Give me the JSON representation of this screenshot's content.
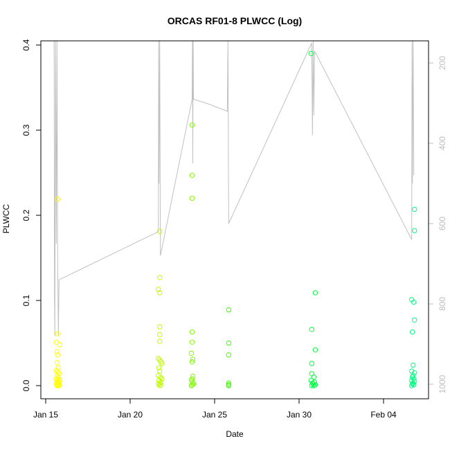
{
  "chart_data": {
    "type": "scatter",
    "title": "ORCAS RF01-8 PLWCC (Log)",
    "xlabel": "Date",
    "ylabel": "PLWCC",
    "xlim": [
      "2016-01-15T00:00",
      "2016-02-06T12:00"
    ],
    "ylim": [
      0,
      0.4
    ],
    "x_ticks": [
      {
        "date": "2016-01-15",
        "label": "Jan 15"
      },
      {
        "date": "2016-01-20",
        "label": "Jan 20"
      },
      {
        "date": "2016-01-25",
        "label": "Jan 25"
      },
      {
        "date": "2016-01-30",
        "label": "Jan 30"
      },
      {
        "date": "2016-02-04",
        "label": "Feb 04"
      }
    ],
    "y_ticks": [
      0.0,
      0.1,
      0.2,
      0.3,
      0.4
    ],
    "y_tick_labels": [
      "0.0",
      "0.1",
      "0.2",
      "0.3",
      "0.4"
    ],
    "right_axis": {
      "ticks": [
        200,
        400,
        600,
        800,
        1000
      ],
      "reversed": true,
      "range": [
        100,
        1000
      ],
      "color": "#bdbdbd"
    },
    "grid": false,
    "marker": "open-circle",
    "point_series": [
      {
        "flight": "RF01",
        "color": "#ffff00",
        "center": "2016-01-15T18:00",
        "y": [
          0.219,
          0.061,
          0.051,
          0.048,
          0.04,
          0.036,
          0.027,
          0.021,
          0.018,
          0.016,
          0.014,
          0.012,
          0.01,
          0.008,
          0.007,
          0.006,
          0.005,
          0.004,
          0.003,
          0.002,
          0.001,
          0.0005,
          0.0,
          0.0
        ],
        "dx_hours": [
          -1,
          -1,
          -3,
          2,
          -2,
          -1,
          -2,
          0,
          -3,
          -1,
          1,
          -2,
          0,
          -3,
          2,
          -1,
          1,
          -2,
          0,
          -3,
          2,
          -1,
          1,
          -2
        ]
      },
      {
        "flight": "RF02",
        "color": "#bfff00",
        "center": "2016-01-21T18:00",
        "y": [
          0.181,
          0.127,
          0.113,
          0.109,
          0.069,
          0.06,
          0.052,
          0.032,
          0.03,
          0.028,
          0.026,
          0.021,
          0.017,
          0.012,
          0.01,
          0.008,
          0.006,
          0.004,
          0.003,
          0.002,
          0.001,
          0.0
        ],
        "dx_hours": [
          0,
          0,
          -2,
          0,
          0,
          0,
          0,
          -2,
          0,
          2,
          3,
          -1,
          0,
          -2,
          1,
          3,
          -1,
          2,
          0,
          -2,
          1,
          0
        ]
      },
      {
        "flight": "RF03",
        "color": "#80ff00",
        "center": "2016-01-23T17:00",
        "y": [
          0.306,
          0.247,
          0.22,
          0.063,
          0.051,
          0.038,
          0.031,
          0.028,
          0.011,
          0.008,
          0.006,
          0.004,
          0.002,
          0.001,
          0.0
        ],
        "dx_hours": [
          -1,
          -1,
          -1,
          -1,
          -1,
          -2,
          0,
          -1,
          0,
          -1,
          -2,
          0,
          1,
          -1,
          -2
        ]
      },
      {
        "flight": "RF04",
        "color": "#40ff00",
        "center": "2016-01-25T20:00",
        "y": [
          0.089,
          0.05,
          0.036,
          0.003,
          0.001,
          0.0
        ],
        "dx_hours": [
          0,
          0,
          0,
          0,
          0,
          0
        ]
      },
      {
        "flight": "RF05",
        "color": "#00ff40",
        "center": "2016-01-30T20:00",
        "y": [
          0.39,
          0.109,
          0.066,
          0.042,
          0.026,
          0.014,
          0.01,
          0.006,
          0.004,
          0.003,
          0.002,
          0.001,
          0.0,
          0.0
        ],
        "dx_hours": [
          -3,
          3,
          -2,
          3,
          -2,
          -2,
          1,
          -3,
          2,
          -1,
          0,
          3,
          -2,
          1
        ]
      },
      {
        "flight": "RF06",
        "color": "#00ff80",
        "center": "2016-02-05T18:00",
        "y": [
          0.207,
          0.182,
          0.101,
          0.098,
          0.077,
          0.063,
          0.024,
          0.017,
          0.015,
          0.012,
          0.01,
          0.008,
          0.006,
          0.005,
          0.003,
          0.002,
          0.001,
          0.0
        ],
        "dx_hours": [
          2,
          2,
          -2,
          1,
          2,
          -1,
          0,
          -2,
          2,
          0,
          -1,
          1,
          -2,
          2,
          0,
          -1,
          1,
          -2
        ]
      }
    ],
    "line_series": {
      "color": "#c0c0c0",
      "axis": "right",
      "points": [
        {
          "t": "2016-01-15T12:00",
          "p": 100
        },
        {
          "t": "2016-01-15T12:30",
          "p": 780
        },
        {
          "t": "2016-01-15T13:00",
          "p": 880
        },
        {
          "t": "2016-01-15T14:00",
          "p": 100
        },
        {
          "t": "2016-01-15T15:00",
          "p": 650
        },
        {
          "t": "2016-01-15T16:00",
          "p": 100
        },
        {
          "t": "2016-01-15T17:00",
          "p": 700
        },
        {
          "t": "2016-01-15T18:00",
          "p": 880
        },
        {
          "t": "2016-01-15T19:00",
          "p": 740
        },
        {
          "t": "2016-01-21T16:00",
          "p": 620
        },
        {
          "t": "2016-01-21T16:30",
          "p": 100
        },
        {
          "t": "2016-01-21T17:00",
          "p": 500
        },
        {
          "t": "2016-01-21T18:00",
          "p": 100
        },
        {
          "t": "2016-01-21T19:00",
          "p": 680
        },
        {
          "t": "2016-01-23T16:00",
          "p": 290
        },
        {
          "t": "2016-01-23T16:30",
          "p": 100
        },
        {
          "t": "2016-01-23T17:00",
          "p": 450
        },
        {
          "t": "2016-01-23T17:30",
          "p": 100
        },
        {
          "t": "2016-01-23T18:00",
          "p": 290
        },
        {
          "t": "2016-01-24T12:00",
          "p": 300
        },
        {
          "t": "2016-01-25T18:00",
          "p": 320
        },
        {
          "t": "2016-01-25T19:00",
          "p": 100
        },
        {
          "t": "2016-01-25T20:00",
          "p": 600
        },
        {
          "t": "2016-01-30T18:00",
          "p": 150
        },
        {
          "t": "2016-01-30T19:00",
          "p": 380
        },
        {
          "t": "2016-01-30T20:00",
          "p": 100
        },
        {
          "t": "2016-01-30T21:00",
          "p": 330
        },
        {
          "t": "2016-01-30T22:00",
          "p": 170
        },
        {
          "t": "2016-02-05T16:00",
          "p": 640
        },
        {
          "t": "2016-02-05T16:30",
          "p": 100
        },
        {
          "t": "2016-02-05T17:00",
          "p": 500
        },
        {
          "t": "2016-02-05T18:00",
          "p": 100
        },
        {
          "t": "2016-02-05T19:00",
          "p": 480
        }
      ]
    }
  }
}
